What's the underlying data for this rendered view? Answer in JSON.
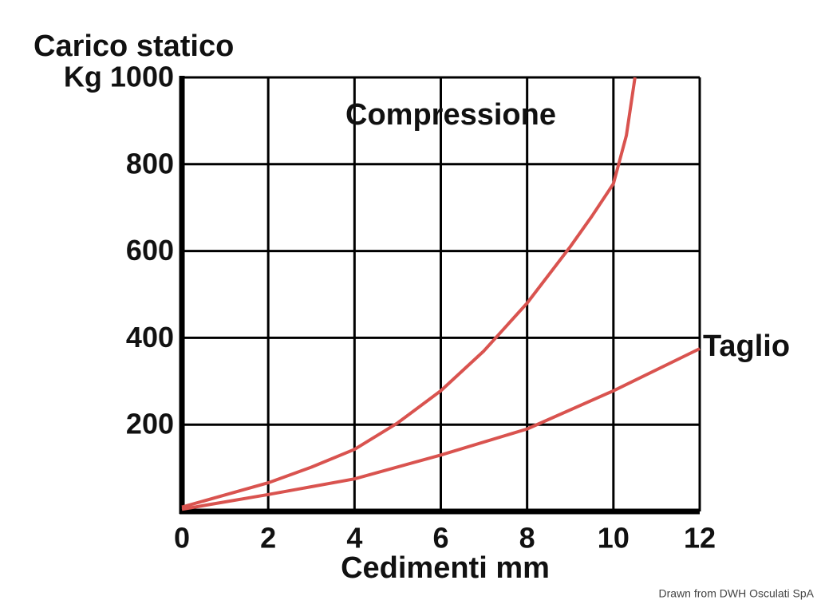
{
  "chart_data": {
    "type": "line",
    "title": "Carico statico",
    "x_label": "Cedimenti mm",
    "credit": "Drawn from DWH Osculati SpA",
    "xlim": [
      0,
      12
    ],
    "ylim": [
      0,
      1000
    ],
    "xticks": [
      0,
      2,
      4,
      6,
      8,
      10,
      12
    ],
    "yticks": [
      200,
      400,
      600,
      800,
      {
        "value": 1000,
        "label": "Kg 1000"
      }
    ],
    "grid": true,
    "series": [
      {
        "name": "Compressione",
        "color": "#d9534f",
        "x": [
          0,
          1,
          2,
          3,
          4,
          5,
          6,
          7,
          8,
          9,
          9.5,
          10,
          10.3,
          10.5
        ],
        "values": [
          10,
          38,
          66,
          102,
          143,
          204,
          278,
          370,
          480,
          610,
          680,
          755,
          866,
          1000
        ]
      },
      {
        "name": "Taglio",
        "color": "#d9534f",
        "x": [
          0,
          2,
          4,
          6,
          8,
          10,
          12
        ],
        "values": [
          5,
          39,
          75,
          130,
          190,
          278,
          375
        ]
      }
    ]
  }
}
